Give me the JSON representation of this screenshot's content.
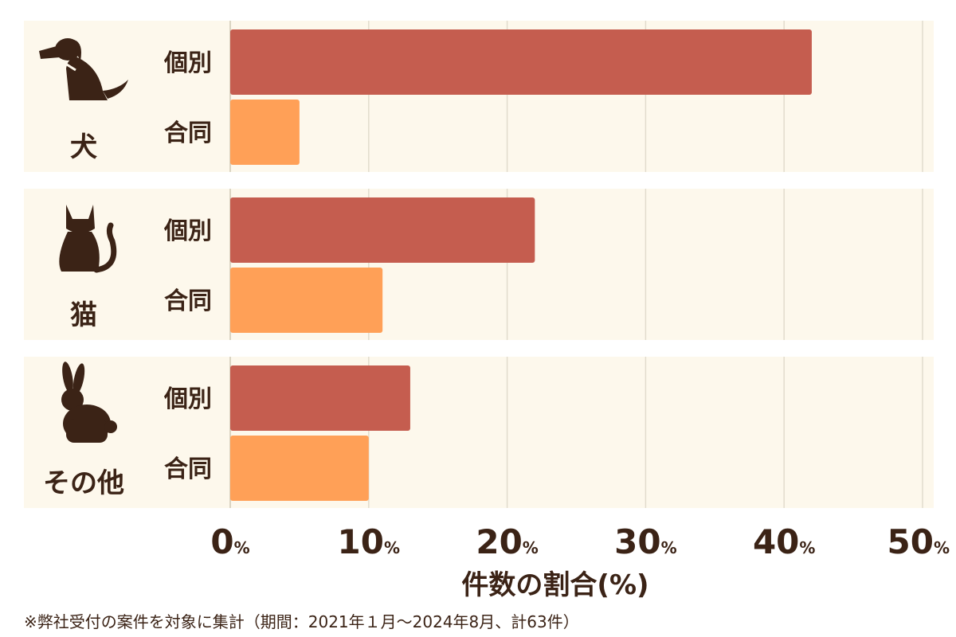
{
  "chart_data": {
    "type": "bar",
    "orientation": "horizontal",
    "groups": [
      "犬",
      "猫",
      "その他"
    ],
    "group_icons": [
      "dog-icon",
      "cat-icon",
      "rabbit-icon"
    ],
    "series": [
      {
        "name": "個別",
        "values": [
          42,
          22,
          13
        ],
        "color": "#c55d4f"
      },
      {
        "name": "合同",
        "values": [
          5,
          11,
          10
        ],
        "color": "#ffa057"
      }
    ],
    "xlim": [
      0,
      50
    ],
    "x_ticks": [
      0,
      10,
      20,
      30,
      40,
      50
    ],
    "tick_unit": "%",
    "xlabel": "件数の割合(%)",
    "grid": true,
    "legend": "inline"
  },
  "footnote": "※弊社受付の案件を対象に集計（期間：2021年１月～2024年8月、計63件）",
  "colors": {
    "panel_background": "#fdf8ec",
    "text": "#3b2316",
    "grid": "#e2dccd"
  }
}
